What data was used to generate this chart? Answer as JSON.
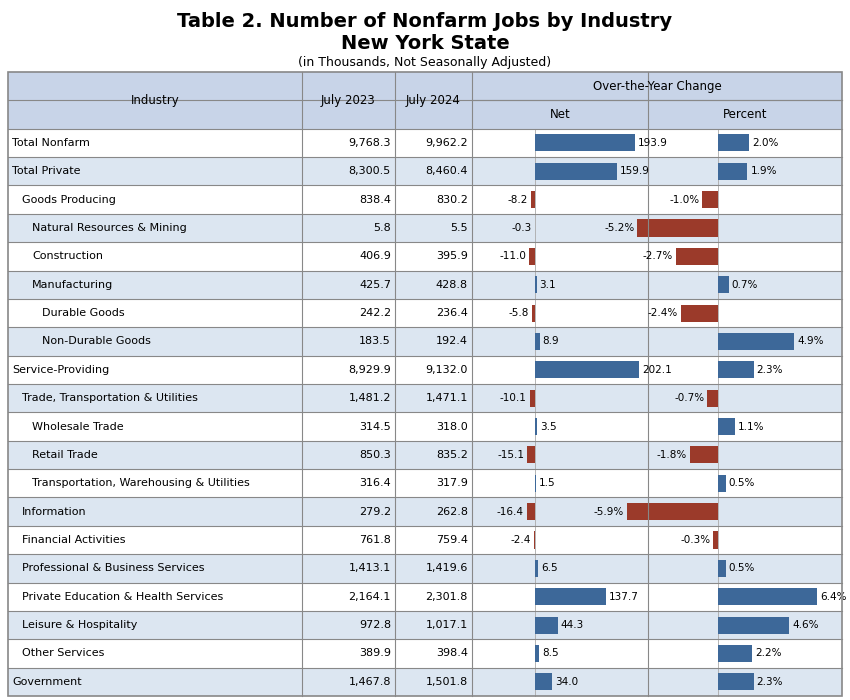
{
  "title_line1": "Table 2. Number of Nonfarm Jobs by Industry",
  "title_line2": "New York State",
  "title_line3": "(in Thousands, Not Seasonally Adjusted)",
  "over_header": "Over-the-Year Change",
  "rows": [
    {
      "industry": "Total Nonfarm",
      "jul2023": "9,768.3",
      "jul2024": "9,962.2",
      "net": 193.9,
      "pct": 2.0,
      "indent": 0,
      "bold": false,
      "shaded": false
    },
    {
      "industry": "Total Private",
      "jul2023": "8,300.5",
      "jul2024": "8,460.4",
      "net": 159.9,
      "pct": 1.9,
      "indent": 0,
      "bold": false,
      "shaded": true
    },
    {
      "industry": "Goods Producing",
      "jul2023": "838.4",
      "jul2024": "830.2",
      "net": -8.2,
      "pct": -1.0,
      "indent": 1,
      "bold": false,
      "shaded": false
    },
    {
      "industry": "Natural Resources & Mining",
      "jul2023": "5.8",
      "jul2024": "5.5",
      "net": -0.3,
      "pct": -5.2,
      "indent": 2,
      "bold": false,
      "shaded": true
    },
    {
      "industry": "Construction",
      "jul2023": "406.9",
      "jul2024": "395.9",
      "net": -11.0,
      "pct": -2.7,
      "indent": 2,
      "bold": false,
      "shaded": false
    },
    {
      "industry": "Manufacturing",
      "jul2023": "425.7",
      "jul2024": "428.8",
      "net": 3.1,
      "pct": 0.7,
      "indent": 2,
      "bold": false,
      "shaded": true
    },
    {
      "industry": "Durable Goods",
      "jul2023": "242.2",
      "jul2024": "236.4",
      "net": -5.8,
      "pct": -2.4,
      "indent": 3,
      "bold": false,
      "shaded": false
    },
    {
      "industry": "Non-Durable Goods",
      "jul2023": "183.5",
      "jul2024": "192.4",
      "net": 8.9,
      "pct": 4.9,
      "indent": 3,
      "bold": false,
      "shaded": true
    },
    {
      "industry": "Service-Providing",
      "jul2023": "8,929.9",
      "jul2024": "9,132.0",
      "net": 202.1,
      "pct": 2.3,
      "indent": 0,
      "bold": false,
      "shaded": false
    },
    {
      "industry": "Trade, Transportation & Utilities",
      "jul2023": "1,481.2",
      "jul2024": "1,471.1",
      "net": -10.1,
      "pct": -0.7,
      "indent": 1,
      "bold": false,
      "shaded": true
    },
    {
      "industry": "Wholesale Trade",
      "jul2023": "314.5",
      "jul2024": "318.0",
      "net": 3.5,
      "pct": 1.1,
      "indent": 2,
      "bold": false,
      "shaded": false
    },
    {
      "industry": "Retail Trade",
      "jul2023": "850.3",
      "jul2024": "835.2",
      "net": -15.1,
      "pct": -1.8,
      "indent": 2,
      "bold": false,
      "shaded": true
    },
    {
      "industry": "Transportation, Warehousing & Utilities",
      "jul2023": "316.4",
      "jul2024": "317.9",
      "net": 1.5,
      "pct": 0.5,
      "indent": 2,
      "bold": false,
      "shaded": false
    },
    {
      "industry": "Information",
      "jul2023": "279.2",
      "jul2024": "262.8",
      "net": -16.4,
      "pct": -5.9,
      "indent": 1,
      "bold": false,
      "shaded": true
    },
    {
      "industry": "Financial Activities",
      "jul2023": "761.8",
      "jul2024": "759.4",
      "net": -2.4,
      "pct": -0.3,
      "indent": 1,
      "bold": false,
      "shaded": false
    },
    {
      "industry": "Professional & Business Services",
      "jul2023": "1,413.1",
      "jul2024": "1,419.6",
      "net": 6.5,
      "pct": 0.5,
      "indent": 1,
      "bold": false,
      "shaded": true
    },
    {
      "industry": "Private Education & Health Services",
      "jul2023": "2,164.1",
      "jul2024": "2,301.8",
      "net": 137.7,
      "pct": 6.4,
      "indent": 1,
      "bold": false,
      "shaded": false
    },
    {
      "industry": "Leisure & Hospitality",
      "jul2023": "972.8",
      "jul2024": "1,017.1",
      "net": 44.3,
      "pct": 4.6,
      "indent": 1,
      "bold": false,
      "shaded": true
    },
    {
      "industry": "Other Services",
      "jul2023": "389.9",
      "jul2024": "398.4",
      "net": 8.5,
      "pct": 2.2,
      "indent": 1,
      "bold": false,
      "shaded": false
    },
    {
      "industry": "Government",
      "jul2023": "1,467.8",
      "jul2024": "1,501.8",
      "net": 34.0,
      "pct": 2.3,
      "indent": 0,
      "bold": false,
      "shaded": true
    }
  ],
  "bar_color_pos": "#3d6899",
  "bar_color_neg": "#9b3a2a",
  "shaded_color": "#dce6f1",
  "unshaded_color": "#ffffff",
  "header_bg": "#c8d4e8",
  "net_max": 220,
  "pct_max": 8.0,
  "figure_bg": "#ffffff",
  "border_color": "#888888",
  "font_size_title1": 14,
  "font_size_title2": 14,
  "font_size_title3": 9,
  "font_size_header": 8.5,
  "font_size_data": 8.0
}
